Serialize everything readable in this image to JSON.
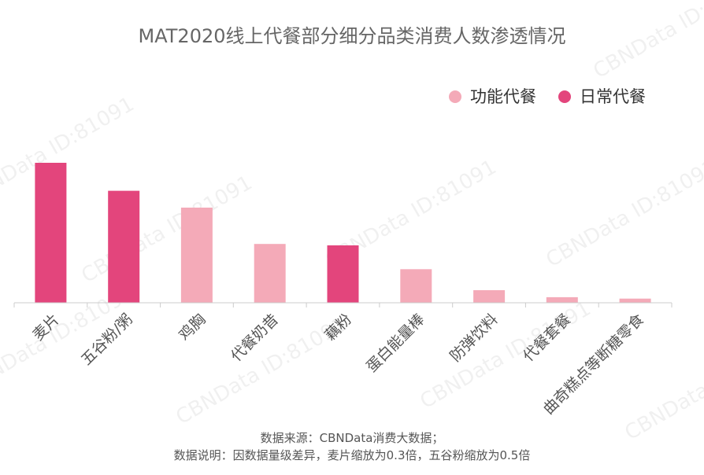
{
  "chart_data": {
    "type": "bar",
    "title": "MAT2020线上代餐部分细分品类消费人数渗透情况",
    "categories": [
      "麦片",
      "五谷粉/粥",
      "鸡胸",
      "代餐奶昔",
      "藕粉",
      "蛋白能量棒",
      "防弹饮料",
      "代餐套餐",
      "曲奇糕点等断糖零食"
    ],
    "values": [
      100,
      80,
      68,
      42,
      41,
      24,
      9,
      4,
      3
    ],
    "series_index": [
      1,
      1,
      0,
      0,
      1,
      0,
      0,
      0,
      0
    ],
    "series": [
      {
        "name": "功能代餐",
        "color": "#f4aab8"
      },
      {
        "name": "日常代餐",
        "color": "#e3457c"
      }
    ],
    "ylim": [
      0,
      100
    ],
    "grid": false,
    "legend_position": "top-right",
    "xlabel": "",
    "ylabel": ""
  },
  "source": {
    "line1": "数据来源：CBNData消费大数据；",
    "line2": "数据说明：因数据量级差异，麦片缩放为0.3倍，五谷粉缩放为0.5倍"
  },
  "watermark": "CBNData ID:81091",
  "colors": {
    "axis": "#cccccc"
  }
}
